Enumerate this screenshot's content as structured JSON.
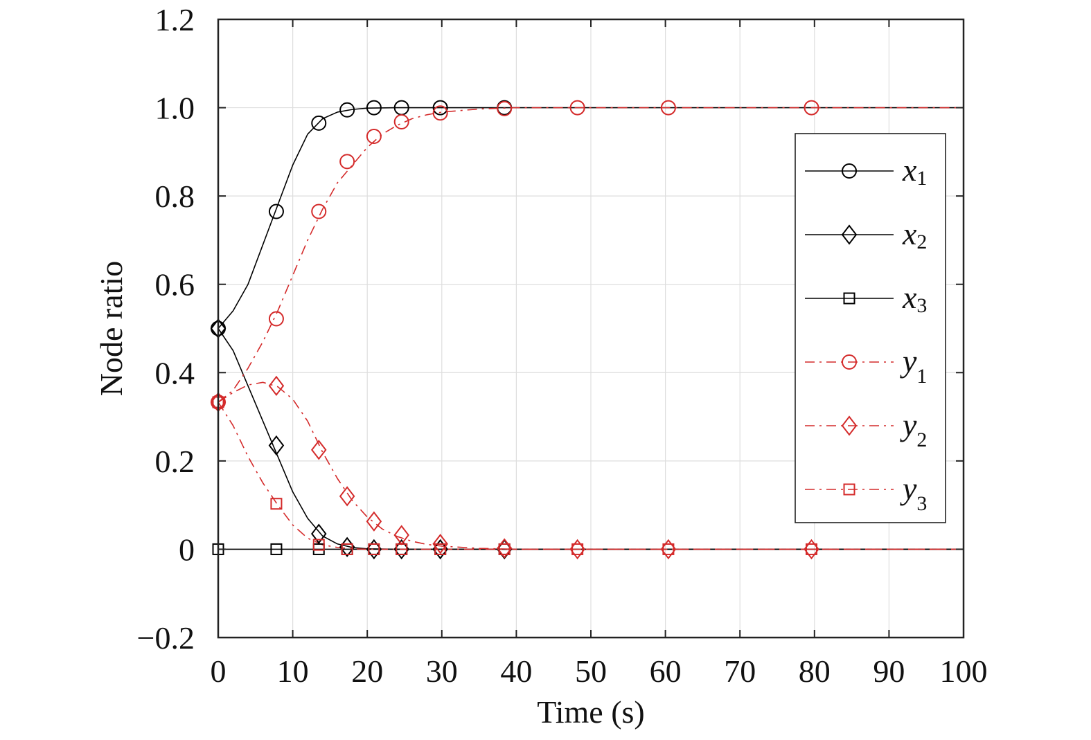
{
  "chart_data": {
    "type": "line",
    "title": "",
    "xlabel": "Time (s)",
    "ylabel": "Node ratio",
    "xlim": [
      0,
      100
    ],
    "ylim": [
      -0.2,
      1.2
    ],
    "xticks": [
      0,
      10,
      20,
      30,
      40,
      50,
      60,
      70,
      80,
      90,
      100
    ],
    "xtick_labels": [
      "0",
      "10",
      "20",
      "30",
      "40",
      "50",
      "60",
      "70",
      "80",
      "90",
      "100"
    ],
    "yticks": [
      -0.2,
      0,
      0.2,
      0.4,
      0.6,
      0.8,
      1.0,
      1.2
    ],
    "ytick_labels": [
      "−0.2",
      "0",
      "0.2",
      "0.4",
      "0.6",
      "0.8",
      "1.0",
      "1.2"
    ],
    "grid": true,
    "legend_position": "right",
    "series": [
      {
        "name": "x1",
        "letter": "x",
        "sub": "1",
        "color": "#000000",
        "dash": "solid",
        "marker": "circle",
        "x": [
          0,
          2,
          4,
          6,
          8,
          10,
          12,
          14,
          16,
          18,
          20,
          24,
          30,
          40,
          100
        ],
        "y": [
          0.5,
          0.54,
          0.6,
          0.69,
          0.78,
          0.87,
          0.94,
          0.975,
          0.99,
          0.996,
          0.999,
          1.0,
          1.0,
          1.0,
          1.0
        ],
        "marker_x": [
          0,
          7.8,
          13.5,
          17.3,
          20.9,
          24.6,
          29.8,
          38.4
        ],
        "marker_y": [
          0.5,
          0.765,
          0.965,
          0.995,
          1.0,
          1.0,
          1.0,
          1.0
        ]
      },
      {
        "name": "x2",
        "letter": "x",
        "sub": "2",
        "color": "#000000",
        "dash": "solid",
        "marker": "diamond",
        "x": [
          0,
          2,
          4,
          6,
          8,
          10,
          12,
          14,
          16,
          18,
          20,
          24,
          30,
          40,
          100
        ],
        "y": [
          0.5,
          0.45,
          0.37,
          0.29,
          0.21,
          0.13,
          0.07,
          0.03,
          0.012,
          0.004,
          0.001,
          0,
          0,
          0,
          0
        ],
        "marker_x": [
          0,
          7.8,
          13.5,
          17.3,
          20.9,
          24.6,
          29.8,
          38.4
        ],
        "marker_y": [
          0.5,
          0.235,
          0.035,
          0.005,
          0.0,
          0.0,
          0.0,
          0.0
        ]
      },
      {
        "name": "x3",
        "letter": "x",
        "sub": "3",
        "color": "#000000",
        "dash": "solid",
        "marker": "square",
        "x": [
          0,
          100
        ],
        "y": [
          0,
          0
        ],
        "marker_x": [
          0,
          7.8,
          13.5,
          17.3,
          20.9,
          24.6,
          29.8,
          38.4
        ],
        "marker_y": [
          0,
          0,
          0,
          0,
          0,
          0,
          0,
          0
        ]
      },
      {
        "name": "y1",
        "letter": "y",
        "sub": "1",
        "color": "#d42a2a",
        "dash": "dashdot",
        "marker": "circle",
        "x": [
          0,
          2,
          4,
          6,
          8,
          10,
          12,
          14,
          16,
          18,
          20,
          22,
          24,
          26,
          28,
          30,
          35,
          40,
          100
        ],
        "y": [
          0.333,
          0.36,
          0.41,
          0.47,
          0.54,
          0.62,
          0.7,
          0.77,
          0.83,
          0.87,
          0.91,
          0.94,
          0.96,
          0.975,
          0.984,
          0.99,
          0.997,
          1.0,
          1.0
        ],
        "marker_x": [
          0,
          7.8,
          13.5,
          17.3,
          20.9,
          24.6,
          29.8,
          38.4,
          48.2,
          60.4,
          79.6
        ],
        "marker_y": [
          0.333,
          0.522,
          0.765,
          0.878,
          0.935,
          0.968,
          0.988,
          0.998,
          1.0,
          1.0,
          1.0
        ]
      },
      {
        "name": "y2",
        "letter": "y",
        "sub": "2",
        "color": "#d42a2a",
        "dash": "dashdot",
        "marker": "diamond",
        "x": [
          0,
          2,
          4,
          6,
          8,
          10,
          12,
          14,
          16,
          18,
          20,
          22,
          24,
          26,
          28,
          30,
          35,
          40,
          100
        ],
        "y": [
          0.333,
          0.355,
          0.372,
          0.378,
          0.368,
          0.34,
          0.29,
          0.22,
          0.16,
          0.11,
          0.073,
          0.046,
          0.029,
          0.018,
          0.011,
          0.007,
          0.002,
          0,
          0
        ],
        "marker_x": [
          0,
          7.8,
          13.5,
          17.3,
          20.9,
          24.6,
          29.8,
          38.4,
          48.2,
          60.4,
          79.6
        ],
        "marker_y": [
          0.333,
          0.37,
          0.225,
          0.12,
          0.063,
          0.032,
          0.012,
          0.002,
          0.0,
          0.0,
          0.0
        ]
      },
      {
        "name": "y3",
        "letter": "y",
        "sub": "3",
        "color": "#d42a2a",
        "dash": "dashdot",
        "marker": "square",
        "x": [
          0,
          2,
          4,
          6,
          8,
          10,
          12,
          14,
          16,
          18,
          20,
          24,
          30,
          100
        ],
        "y": [
          0.333,
          0.28,
          0.21,
          0.15,
          0.1,
          0.055,
          0.025,
          0.01,
          0.004,
          0.001,
          0,
          0,
          0,
          0
        ],
        "marker_x": [
          0,
          7.8,
          13.5,
          17.3,
          20.9,
          24.6,
          29.8,
          38.4,
          48.2,
          60.4,
          79.6
        ],
        "marker_y": [
          0.333,
          0.103,
          0.01,
          0.0,
          0.0,
          0.0,
          0.0,
          0.0,
          0.0,
          0.0,
          0.0
        ]
      }
    ]
  }
}
